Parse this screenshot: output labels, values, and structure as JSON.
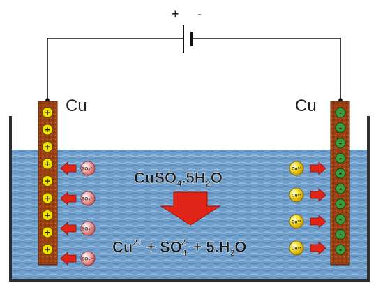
{
  "battery": {
    "plus": "+",
    "minus": "-"
  },
  "electrodes": {
    "left": {
      "label": "Cu",
      "charge": "+",
      "count": 9
    },
    "right": {
      "label": "Cu",
      "charge": "-",
      "count": 10
    }
  },
  "ions": {
    "anion_label": "SO₄²⁻",
    "cation_label": "Cu²⁺",
    "anion_count": 4,
    "cation_count": 4
  },
  "formula": {
    "top": {
      "base": "CuSO",
      "sub1": "4",
      "mid": ".5H",
      "sub2": "2",
      "end": "O"
    },
    "bottom": {
      "cu": "Cu",
      "cu_charge": "2+",
      "plus1": " + ",
      "so": "SO",
      "so_sub": "4",
      "so_charge": "2-",
      "plus2": " + 5.H",
      "h_sub": "2",
      "end": "O"
    }
  },
  "colors": {
    "electrode": "#9a3f12",
    "electrolyte": "#6e9ec9",
    "anion": "#e89a9a",
    "cation": "#f2d21a",
    "arrow": "#e02418",
    "plus_dot": "#f0e000",
    "minus_dot": "#3a9a3a"
  }
}
